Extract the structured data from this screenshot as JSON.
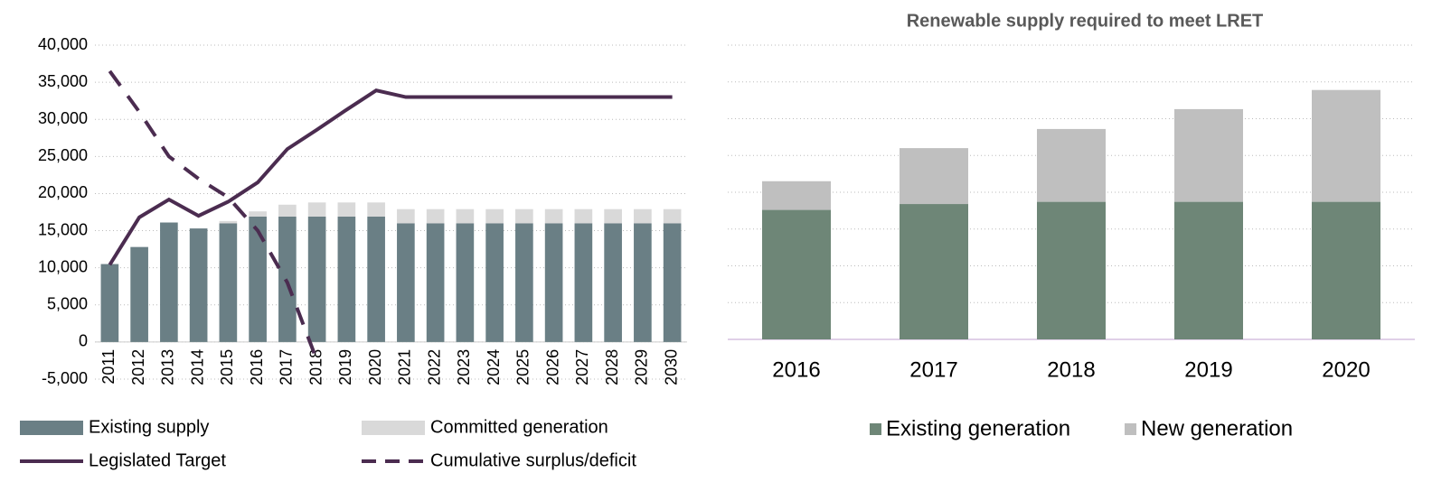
{
  "chart_data": [
    {
      "type": "combo",
      "categories": [
        "2011",
        "2012",
        "2013",
        "2014",
        "2015",
        "2016",
        "2017",
        "2018",
        "2019",
        "2020",
        "2021",
        "2022",
        "2023",
        "2024",
        "2025",
        "2026",
        "2027",
        "2028",
        "2029",
        "2030"
      ],
      "series": [
        {
          "name": "Existing supply",
          "kind": "bar",
          "color": "#6a7f85",
          "values": [
            10500,
            12800,
            16100,
            15300,
            16000,
            16900,
            16900,
            16900,
            16900,
            16900,
            16000,
            16000,
            16000,
            16000,
            16000,
            16000,
            16000,
            16000,
            16000,
            16000
          ]
        },
        {
          "name": "Committed generation",
          "kind": "bar",
          "color": "#d9d9d9",
          "values": [
            0,
            0,
            0,
            0,
            300,
            700,
            1600,
            1900,
            1900,
            1900,
            1900,
            1900,
            1900,
            1900,
            1900,
            1900,
            1900,
            1900,
            1900,
            1900
          ]
        },
        {
          "name": "Legislated Target",
          "kind": "line",
          "color": "#4b2c50",
          "values": [
            10400,
            16800,
            19200,
            17000,
            18900,
            21500,
            26000,
            28600,
            31300,
            33900,
            33000,
            33000,
            33000,
            33000,
            33000,
            33000,
            33000,
            33000,
            33000,
            33000
          ]
        },
        {
          "name": "Cumulative surplus/deficit",
          "kind": "dashed",
          "color": "#4b2c50",
          "values": [
            36500,
            31000,
            25000,
            22000,
            19500,
            15000,
            8000,
            -2500,
            null,
            null,
            null,
            null,
            null,
            null,
            null,
            null,
            null,
            null,
            null,
            null
          ]
        }
      ],
      "ylim": [
        -5000,
        40000
      ],
      "yticks": [
        {
          "value": 40000,
          "label": "40,000"
        },
        {
          "value": 35000,
          "label": "35,000"
        },
        {
          "value": 30000,
          "label": "30,000"
        },
        {
          "value": 25000,
          "label": "25,000"
        },
        {
          "value": 20000,
          "label": "20,000"
        },
        {
          "value": 15000,
          "label": "15,000"
        },
        {
          "value": 10000,
          "label": "10,000"
        },
        {
          "value": 5000,
          "label": "5,000"
        },
        0,
        {
          "value": -5000,
          "label": "-5,000"
        }
      ],
      "grid": true
    },
    {
      "type": "stacked_bar",
      "title": "Renewable supply required to meet LRET",
      "categories": [
        "2016",
        "2017",
        "2018",
        "2019",
        "2020"
      ],
      "series": [
        {
          "name": "Existing generation",
          "color": "#6e8677",
          "values": [
            17600,
            18400,
            18700,
            18700,
            18700
          ]
        },
        {
          "name": "New generation",
          "color": "#bfbfbf",
          "values": [
            3900,
            7600,
            9900,
            12600,
            15200
          ]
        }
      ],
      "ylim": [
        0,
        40000
      ],
      "yticks": [
        0,
        5000,
        10000,
        15000,
        20000,
        25000,
        30000,
        35000,
        40000
      ],
      "grid": true
    }
  ]
}
